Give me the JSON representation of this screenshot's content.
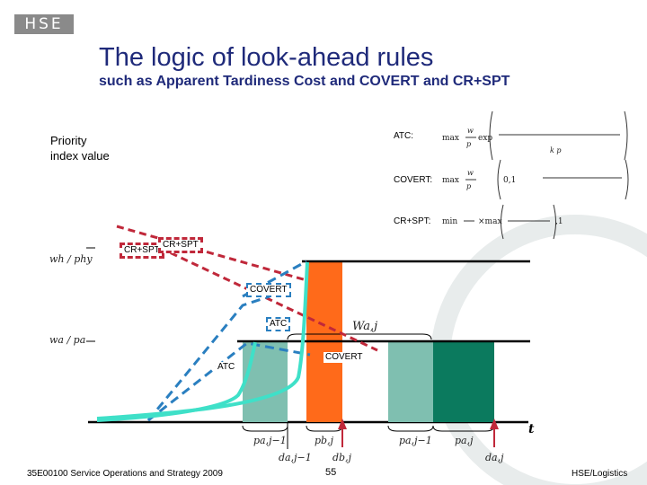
{
  "header": {
    "logo_text": "HSE",
    "title": "The logic of look-ahead rules",
    "subtitle": "such as Apparent Tardiness Cost and COVERT and CR+SPT"
  },
  "axis": {
    "y_label": "Priority index value",
    "x_label": "t"
  },
  "formulas": {
    "atc_label": "ATC:",
    "covert_label": "COVERT:",
    "crspt_label": "CR+SPT:"
  },
  "curve_labels": {
    "crspt_left": "CR+SPT",
    "crspt_right": "CR+SPT",
    "covert_upper": "COVERT",
    "atc_upper": "ATC",
    "atc_lower": "ATC",
    "covert_lower": "COVERT"
  },
  "math_labels": {
    "wh_ph": "wh / phy",
    "wa_pa": "wa / pa",
    "w_a_j": "Wa,j",
    "p_a_j1_left": "pa,j−1",
    "p_b_j": "pb,j",
    "p_a_j1_right": "pa,j−1",
    "p_a_j": "pa,j",
    "d_a_j1": "da,j−1",
    "d_b_j": "db,j",
    "d_a_j": "da,j"
  },
  "footer": {
    "course": "35E00100 Service Operations and Strategy 2009",
    "page": "55",
    "dept": "HSE/Logistics"
  },
  "colors": {
    "title": "#1f2a7a",
    "red_dashed": "#c0283a",
    "blue_dashed": "#2a7fc0",
    "orange_bar": "#ff6a1a",
    "teal_bar": "#7fbfb0",
    "dark_teal_bar": "#0b7a5e",
    "cyan_curve": "#3fe0c8"
  }
}
